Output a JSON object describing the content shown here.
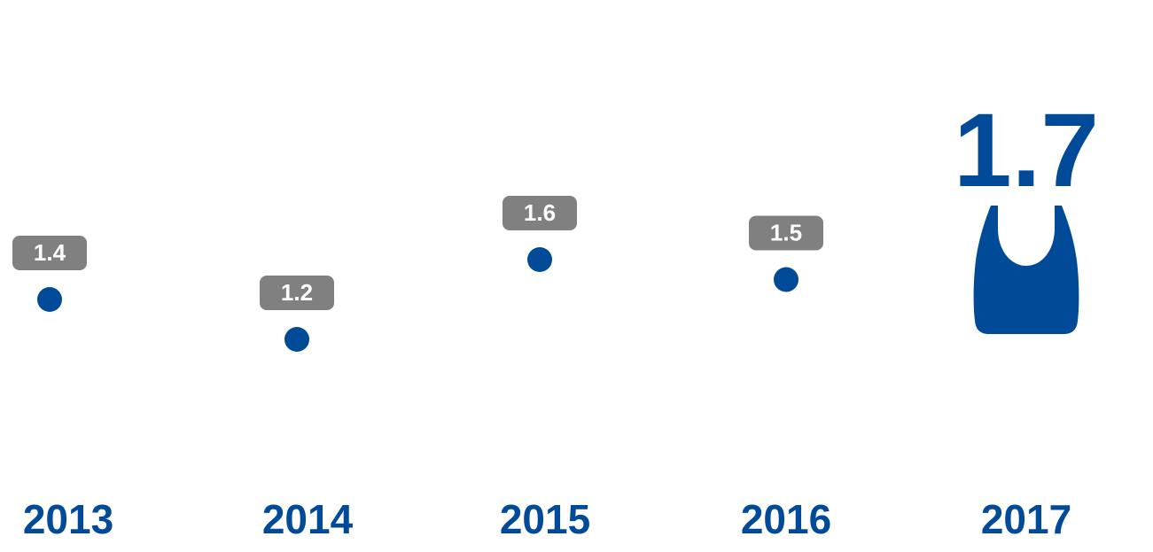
{
  "chart_data": {
    "type": "scatter",
    "categories": [
      "2013",
      "2014",
      "2015",
      "2016",
      "2017"
    ],
    "values": [
      1.4,
      1.2,
      1.6,
      1.5,
      1.7
    ],
    "value_labels": [
      "1.4",
      "1.2",
      "1.6",
      "1.5",
      "1.7"
    ],
    "highlight_index": 4,
    "highlight_icon": "shopping-bag-icon",
    "grid": false,
    "legend": "none",
    "colors": {
      "marker": "#004A98",
      "label_bg": "#808080",
      "label_text": "#ffffff",
      "year_text": "#004A98",
      "highlight_text": "#004A98"
    }
  }
}
